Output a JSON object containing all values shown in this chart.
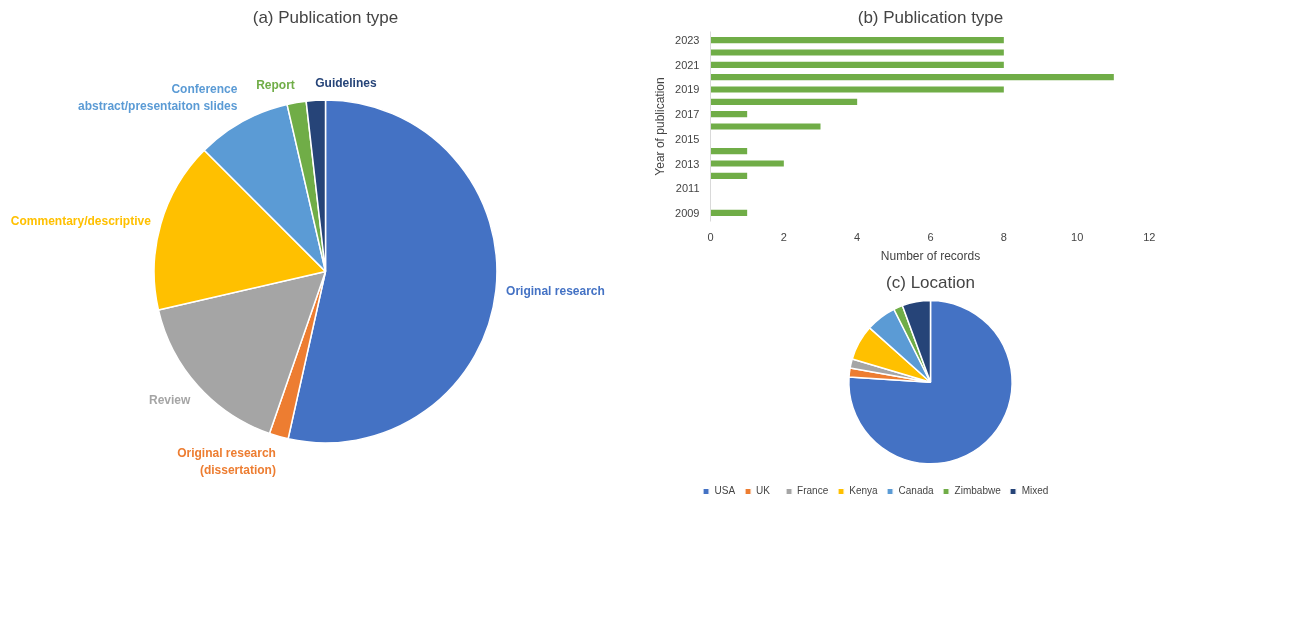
{
  "chart_data": [
    {
      "type": "pie",
      "title": "(a) Publication type",
      "categories": [
        "Original research",
        "Original research\n(dissertation)",
        "Review",
        "Commentary/descriptive",
        "Conference\nabstract/presentaiton slides",
        "Report",
        "Guidelines"
      ],
      "values": [
        53.5,
        1.8,
        16.1,
        16.1,
        8.9,
        1.8,
        1.8
      ],
      "colors": [
        "#4472c4",
        "#ed7d31",
        "#a5a5a5",
        "#ffc000",
        "#5b9bd5",
        "#70ad47",
        "#264478"
      ]
    },
    {
      "type": "bar",
      "orientation": "horizontal",
      "title": "(b) Publication type",
      "xlabel": "Number of records",
      "ylabel": "Year of publication",
      "categories": [
        "2023",
        null,
        "2021",
        null,
        "2019",
        null,
        "2017",
        null,
        "2015",
        null,
        "2013",
        null,
        "2011",
        null,
        "2009"
      ],
      "values": [
        8,
        8,
        8,
        11,
        8,
        4,
        1,
        3,
        0,
        1,
        2,
        1,
        0,
        0,
        1
      ],
      "color": "#70ad47",
      "xlim": [
        0,
        12
      ],
      "xticks": [
        0,
        2,
        4,
        6,
        8,
        10,
        12
      ]
    },
    {
      "type": "pie",
      "title": "(c) Location",
      "categories": [
        "USA",
        "UK",
        "France",
        "Kenya",
        "Canada",
        "Zimbabwe",
        "Mixed"
      ],
      "values": [
        76.0,
        1.8,
        1.8,
        7.0,
        6.0,
        1.8,
        5.6
      ],
      "colors": [
        "#4472c4",
        "#ed7d31",
        "#a5a5a5",
        "#ffc000",
        "#5b9bd5",
        "#70ad47",
        "#264478"
      ],
      "legend": "bottom"
    }
  ]
}
